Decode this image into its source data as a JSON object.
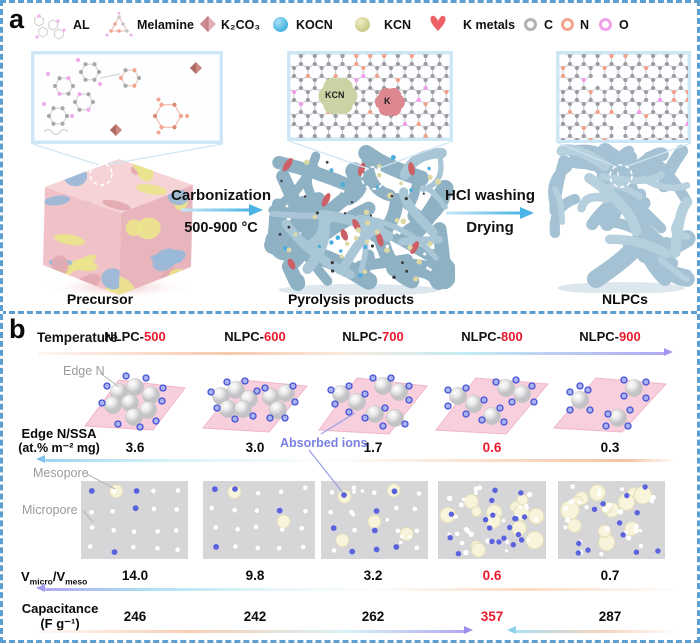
{
  "figure": {
    "panel_a_label": "a",
    "panel_b_label": "b"
  },
  "legend": {
    "items": [
      {
        "label": "AL"
      },
      {
        "label": "Melamine"
      },
      {
        "label": "K₂CO₃"
      },
      {
        "label": "KOCN"
      },
      {
        "label": "KCN"
      },
      {
        "label": "K metals"
      },
      {
        "label": "C"
      },
      {
        "label": "N"
      },
      {
        "label": "O"
      }
    ],
    "colors": {
      "k2co3": "#d49098",
      "kocn": "#45b2e2",
      "kcn": "#cfcf8e",
      "k_metals": "#ee5f66",
      "c": "#b2b2b2",
      "n": "#f4a48c",
      "o": "#f0a0e8"
    }
  },
  "panel_a": {
    "inset_blobs": {
      "kcn": "KCN",
      "k": "K"
    },
    "process1": {
      "line1": "Carbonization",
      "line2": "500-900 °C"
    },
    "process2": {
      "line1": "HCl washing",
      "line2": "Drying"
    },
    "stages": [
      {
        "label": "Precursor"
      },
      {
        "label": "Pyrolysis products"
      },
      {
        "label": "NLPCs"
      }
    ]
  },
  "panel_b": {
    "temperature_label": "Temperature",
    "samples": [
      {
        "prefix": "NLPC-",
        "temp": "500"
      },
      {
        "prefix": "NLPC-",
        "temp": "600"
      },
      {
        "prefix": "NLPC-",
        "temp": "700"
      },
      {
        "prefix": "NLPC-",
        "temp": "800"
      },
      {
        "prefix": "NLPC-",
        "temp": "900"
      }
    ],
    "annotations": {
      "edge_n": "Edge N",
      "absorbed_ions": "Absorbed ions",
      "mesopore": "Mesopore",
      "micropore": "Micropore"
    },
    "edge_n_ssa": {
      "label_line1": "Edge N/SSA",
      "label_line2": "(at.% m⁻² mg)",
      "values": [
        "3.6",
        "3.0",
        "1.7",
        "0.6",
        "0.3"
      ],
      "highlight_index": 3
    },
    "v_ratio": {
      "label_base1": "V",
      "label_sub1": "micro",
      "label_sep": "/",
      "label_base2": "V",
      "label_sub2": "meso",
      "values": [
        "14.0",
        "9.8",
        "3.2",
        "0.6",
        "0.7"
      ],
      "highlight_index": 3
    },
    "capacitance": {
      "label_line1": "Capacitance",
      "label_line2": "(F g⁻¹)",
      "values": [
        "246",
        "242",
        "262",
        "357",
        "287"
      ],
      "highlight_index": 3
    },
    "accent_red": "#e8192d"
  }
}
